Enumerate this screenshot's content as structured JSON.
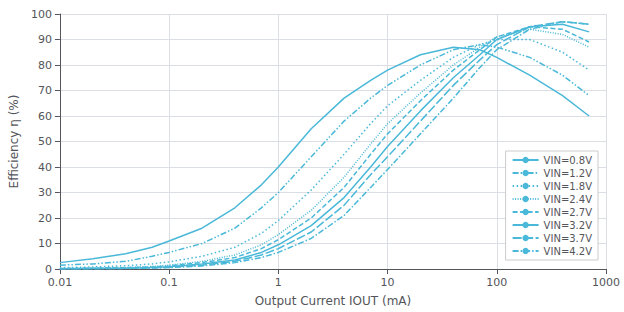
{
  "chart_data": {
    "type": "line",
    "xlabel": "Output Current IOUT (mA)",
    "ylabel": "Efficiency η (%)",
    "color": "#4ab8d8",
    "log": "x",
    "grid": true,
    "legend": "lower right",
    "xlim": [
      0.01,
      1000
    ],
    "ylim": [
      0,
      100
    ],
    "xticks": [
      0.01,
      0.1,
      1,
      10,
      100,
      1000
    ],
    "yticks": [
      0,
      10,
      20,
      30,
      40,
      50,
      60,
      70,
      80,
      90,
      100
    ],
    "x": [
      0.01,
      0.02,
      0.04,
      0.07,
      0.1,
      0.2,
      0.4,
      0.7,
      1,
      2,
      4,
      7,
      10,
      20,
      40,
      70,
      100,
      200,
      400,
      700
    ],
    "series": [
      {
        "name": "VIN=0.8V",
        "line_style": "solid",
        "values": [
          2.5,
          4,
          6,
          8.5,
          11,
          16,
          24,
          33,
          40,
          55,
          67,
          74,
          78,
          84,
          87,
          86,
          83,
          76,
          68,
          60
        ]
      },
      {
        "name": "VIN=1.2V",
        "line_style": "dashdotdot",
        "values": [
          1.5,
          2,
          3,
          5,
          6.5,
          10,
          16,
          24,
          30,
          44,
          58,
          67,
          72,
          80,
          86,
          88,
          87,
          83,
          76,
          68
        ]
      },
      {
        "name": "VIN=1.8V",
        "line_style": "dotted",
        "values": [
          0.5,
          0.8,
          1.3,
          2,
          2.8,
          5,
          8.5,
          14,
          19,
          31,
          45,
          57,
          64,
          74,
          83,
          88,
          90,
          90,
          85,
          78
        ]
      },
      {
        "name": "VIN=2.4V",
        "line_style": "densedot",
        "values": [
          0.2,
          0.4,
          0.6,
          1,
          1.5,
          3,
          5.5,
          9.5,
          13.5,
          23,
          36,
          49,
          57,
          69,
          80,
          87,
          91,
          94,
          92,
          87
        ]
      },
      {
        "name": "VIN=2.7V",
        "line_style": "dashed",
        "values": [
          0.15,
          0.3,
          0.5,
          0.8,
          1.2,
          2.5,
          4.5,
          8,
          11.5,
          20,
          32,
          45,
          53,
          66,
          78,
          86,
          91,
          95,
          94,
          89
        ]
      },
      {
        "name": "VIN=3.2V",
        "line_style": "solid",
        "values": [
          0.1,
          0.2,
          0.3,
          0.6,
          0.9,
          2,
          3.5,
          6.5,
          9.5,
          17,
          28,
          40,
          48,
          62,
          75,
          84,
          90,
          95,
          96,
          93
        ]
      },
      {
        "name": "VIN=3.7V",
        "line_style": "longdash",
        "values": [
          0.08,
          0.15,
          0.25,
          0.45,
          0.7,
          1.5,
          3,
          5.5,
          8,
          14.5,
          25,
          37,
          44,
          58,
          72,
          82,
          88,
          95,
          97,
          96
        ]
      },
      {
        "name": "VIN=4.2V",
        "line_style": "dashdot",
        "values": [
          0.06,
          0.12,
          0.2,
          0.35,
          0.55,
          1.2,
          2.5,
          4.5,
          6.5,
          12,
          21,
          32,
          39,
          53,
          67,
          79,
          86,
          94,
          97,
          96
        ]
      }
    ]
  }
}
